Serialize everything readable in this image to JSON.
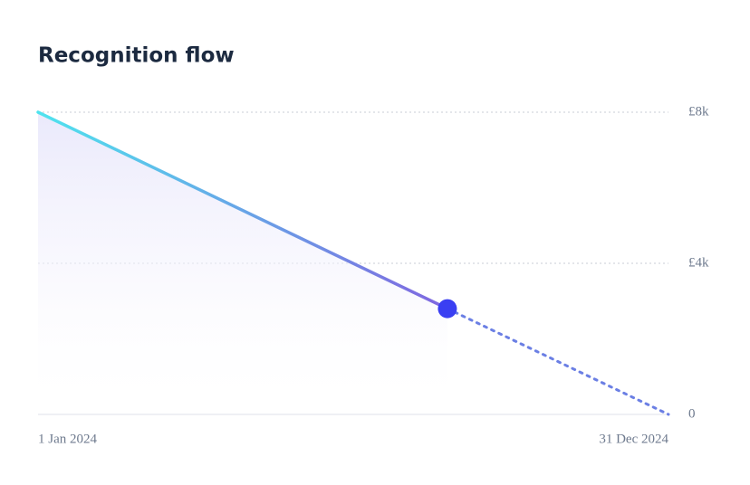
{
  "chart_data": {
    "type": "line",
    "title": "Recognition flow",
    "x": [
      0,
      237,
      365
    ],
    "xlim": [
      0,
      365
    ],
    "xticks": [
      {
        "value": 0,
        "label": "1 Jan 2024"
      },
      {
        "value": 365,
        "label": "31 Dec 2024"
      }
    ],
    "ylim": [
      0,
      8000
    ],
    "yticks": [
      0,
      {
        "value": 4000,
        "label": "£4k"
      },
      {
        "value": 8000,
        "label": "£8k"
      }
    ],
    "grid": true,
    "series": [
      {
        "color": [
          "#4fe3ee",
          "#8066e0"
        ],
        "style": "solid",
        "values": [
          8000,
          2800,
          null
        ]
      },
      {
        "color": "#6b7fe4",
        "style": "dotted",
        "values": [
          null,
          2800,
          0
        ]
      }
    ],
    "marker_color": "#3a3ff2"
  }
}
